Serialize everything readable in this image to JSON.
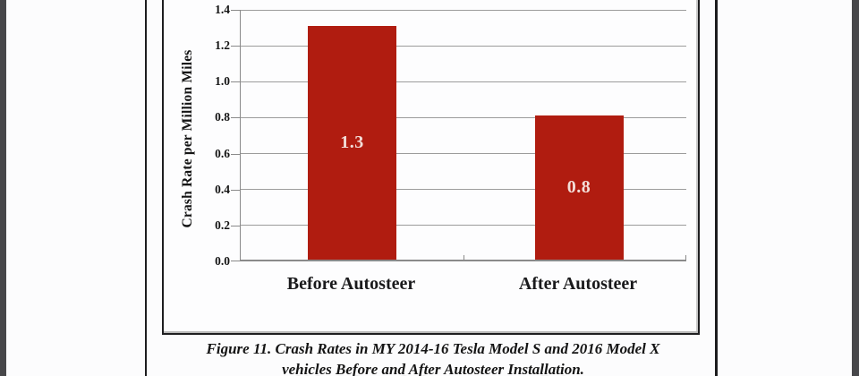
{
  "viewer": {
    "gutter_color": "#47474a",
    "paper_color": "#fcfcfd",
    "table_rule_color": "#1c1c1e"
  },
  "chart_data": {
    "type": "bar",
    "title": "",
    "categories": [
      "Before Autosteer",
      "After Autosteer"
    ],
    "values": [
      1.3,
      0.8
    ],
    "data_labels": [
      "1.3",
      "0.8"
    ],
    "xlabel": "",
    "ylabel": "Crash Rate per Million Miles",
    "ylim": [
      0.0,
      1.4
    ],
    "ytick_interval": 0.2,
    "ytick_labels": [
      "1.4",
      "1.2",
      "1.0",
      "0.8",
      "0.6",
      "0.4",
      "0.2",
      "0.0"
    ],
    "grid": true,
    "legend": "none",
    "colors": {
      "bar_fill": "#b01c10",
      "bar_label_text": "#f3ded9",
      "gridline": "#9c9c9c",
      "axis_line": "#8a8a8a",
      "text": "#141414"
    }
  },
  "caption": {
    "line1": "Figure 11. Crash Rates in MY 2014-16 Tesla Model S and 2016 Model X",
    "line2": "vehicles Before and After Autosteer Installation."
  }
}
